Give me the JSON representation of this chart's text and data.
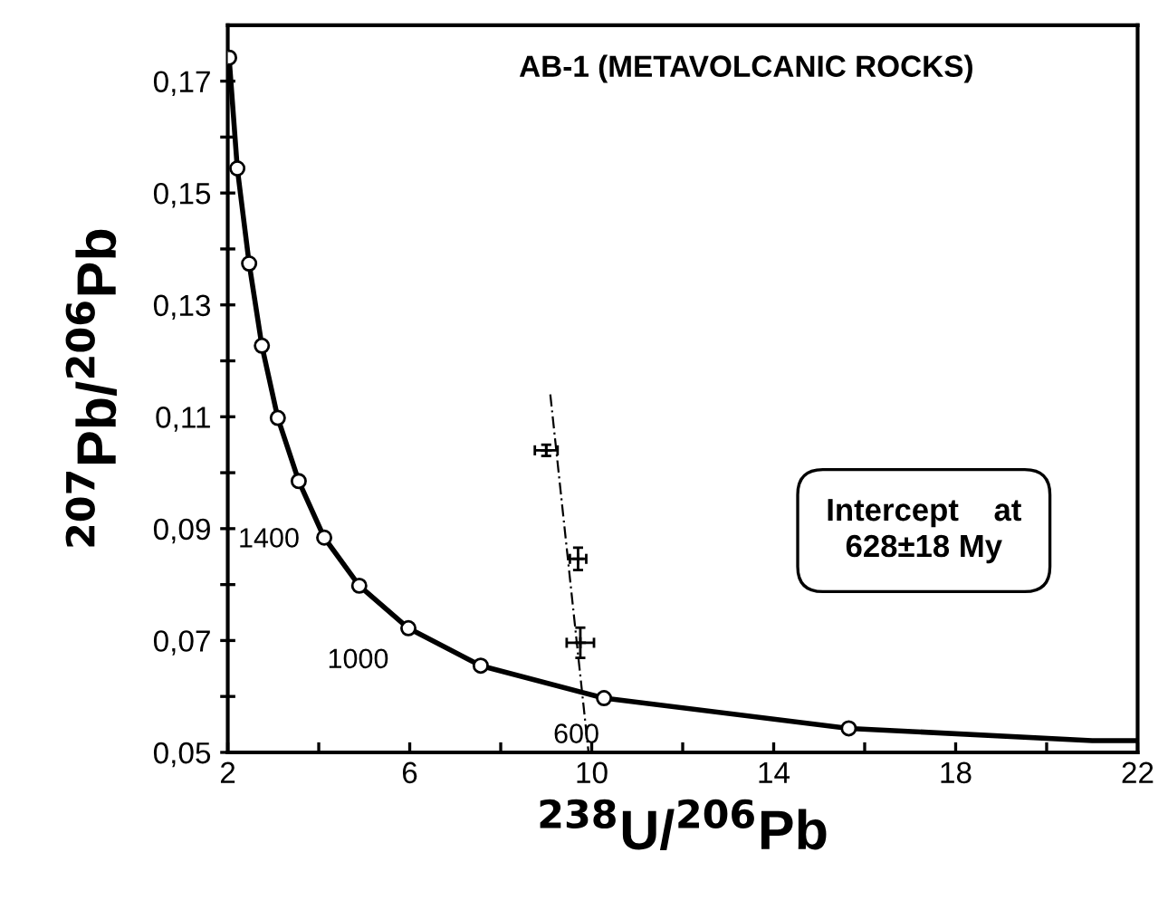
{
  "chart_data": {
    "type": "line",
    "title": "AB-1 (METAVOLCANIC ROCKS)",
    "xlabel": "$^{238}$U/$^{206}$Pb",
    "ylabel": "$^{207}$Pb/$^{206}$Pb",
    "xlim": [
      2,
      22
    ],
    "ylim": [
      0.05,
      0.18
    ],
    "xticks": [
      2,
      {
        "value": 4,
        "label": null
      },
      6,
      {
        "value": 8,
        "label": null
      },
      10,
      {
        "value": 12,
        "label": null
      },
      14,
      {
        "value": 16,
        "label": null
      },
      18,
      {
        "value": 20,
        "label": null
      },
      22
    ],
    "yticks": [
      {
        "value": 0.05,
        "label": "0,05"
      },
      {
        "value": 0.06,
        "label": null
      },
      {
        "value": 0.07,
        "label": "0,07"
      },
      {
        "value": 0.08,
        "label": null
      },
      {
        "value": 0.09,
        "label": "0,09"
      },
      {
        "value": 0.1,
        "label": null
      },
      {
        "value": 0.11,
        "label": "0,11"
      },
      {
        "value": 0.12,
        "label": null
      },
      {
        "value": 0.13,
        "label": "0,13"
      },
      {
        "value": 0.14,
        "label": null
      },
      {
        "value": 0.15,
        "label": "0,15"
      },
      {
        "value": 0.16,
        "label": null
      },
      {
        "value": 0.17,
        "label": "0,17"
      }
    ],
    "grid": false,
    "legend": false,
    "series": [
      {
        "color": "#000000",
        "marker": "none",
        "line_style": "solid",
        "x": [
          2.03,
          2.21,
          2.47,
          2.75,
          3.1,
          3.56,
          4.12,
          4.89,
          5.97,
          7.56,
          10.27,
          15.65,
          21.0,
          22.0
        ],
        "values": [
          0.1742,
          0.1544,
          0.1374,
          0.1227,
          0.1098,
          0.0985,
          0.0884,
          0.0798,
          0.0722,
          0.0655,
          0.0597,
          0.0543,
          0.0521,
          0.0521
        ]
      },
      {
        "type": "scatter",
        "color": "#000000",
        "marker": "circle",
        "x": [
          2.03,
          2.21,
          2.47,
          2.75,
          3.1,
          3.56,
          4.12,
          4.89,
          5.97,
          7.56,
          10.27,
          15.65
        ],
        "values": [
          0.1742,
          0.1544,
          0.1374,
          0.1227,
          0.1098,
          0.0985,
          0.0884,
          0.0798,
          0.0722,
          0.0655,
          0.0597,
          0.0543
        ]
      },
      {
        "color": "#000000",
        "marker": "none",
        "line_style": "dashed",
        "x": [
          9.09,
          9.93
        ],
        "values": [
          0.114,
          0.05
        ]
      },
      {
        "type": "scatter",
        "color": "#000000",
        "marker": "cross",
        "x": [
          9.0,
          9.7,
          9.75
        ],
        "values": [
          0.104,
          0.0846,
          0.0696
        ],
        "errors": [
          0.001,
          0.002,
          0.0027
        ],
        "xerrors": [
          0.25,
          0.18,
          0.3
        ]
      }
    ],
    "annotations": [
      {
        "text": "1400",
        "x": 4.12,
        "y": 0.0884
      },
      {
        "text": "1000",
        "x": 5.97,
        "y": 0.0722
      },
      {
        "text": "600",
        "x": 10.27,
        "y": 0.0597
      },
      "Intercept    at\n628±18 My"
    ]
  }
}
